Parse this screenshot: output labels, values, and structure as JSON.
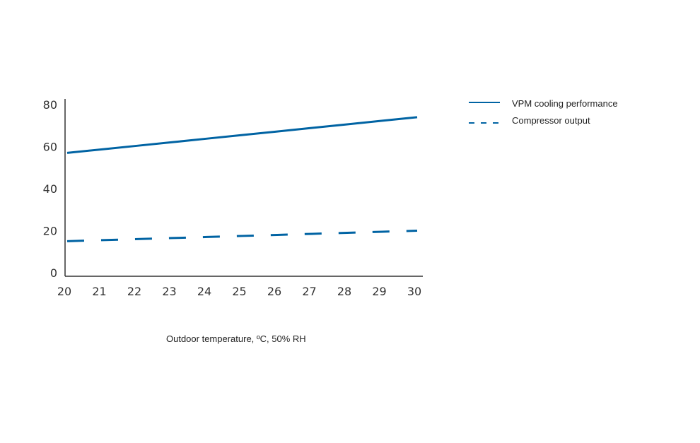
{
  "chart_data": {
    "type": "line",
    "title": "",
    "xlabel": "Outdoor temperature, ºC, 50% RH",
    "ylabel": "",
    "x": [
      20,
      21,
      22,
      23,
      24,
      25,
      26,
      27,
      28,
      29,
      30
    ],
    "xlim": [
      20,
      30
    ],
    "ylim": [
      0,
      80
    ],
    "yticks": [
      0,
      20,
      40,
      60,
      80
    ],
    "grid": false,
    "legend_position": "top-right (outside)",
    "series": [
      {
        "name": "VPM cooling performance",
        "style": "solid",
        "color": "#0063a3",
        "values": [
          57,
          58.7,
          60.4,
          62.1,
          63.8,
          65.5,
          67.2,
          68.9,
          70.6,
          72.3,
          74
        ]
      },
      {
        "name": "Compressor output",
        "style": "dashed",
        "color": "#0063a3",
        "values": [
          15,
          15.5,
          16,
          16.5,
          17,
          17.5,
          18,
          18.5,
          19,
          19.5,
          20
        ]
      }
    ]
  }
}
